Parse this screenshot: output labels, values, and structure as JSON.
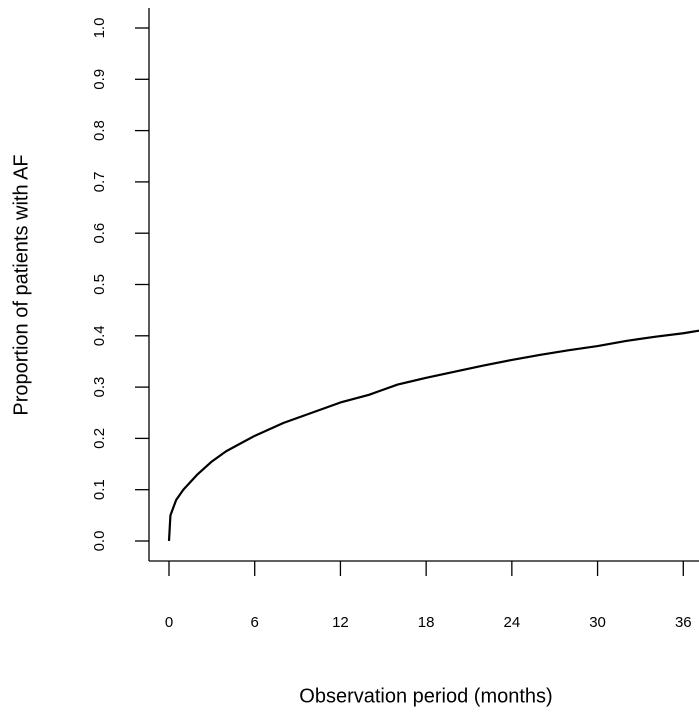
{
  "chart_data": {
    "type": "line",
    "x_label": "Observation period (months)",
    "y_label": "Proportion of patients with AF",
    "x": [
      0,
      0.1,
      0.5,
      1,
      2,
      3,
      4,
      5,
      6,
      8,
      10,
      12,
      14,
      16,
      18,
      20,
      22,
      24,
      26,
      28,
      30,
      32,
      34,
      36,
      37.1
    ],
    "series": [
      {
        "color": "#000000",
        "values": [
          0,
          0.05,
          0.08,
          0.1,
          0.13,
          0.155,
          0.175,
          0.19,
          0.205,
          0.23,
          0.25,
          0.27,
          0.285,
          0.305,
          0.318,
          0.33,
          0.342,
          0.353,
          0.363,
          0.372,
          0.38,
          0.39,
          0.398,
          0.405,
          0.41
        ]
      }
    ],
    "xlim": [
      -1.4,
      37.1
    ],
    "ylim": [
      -0.039,
      1.039
    ],
    "xticks": [
      0,
      6,
      12,
      18,
      24,
      30,
      36
    ],
    "yticks": [
      {
        "value": 0,
        "label": "0.0"
      },
      0.1,
      0.2,
      0.3,
      0.4,
      0.5,
      0.6,
      0.7,
      0.8,
      0.9,
      {
        "value": 1,
        "label": "1.0"
      }
    ]
  }
}
